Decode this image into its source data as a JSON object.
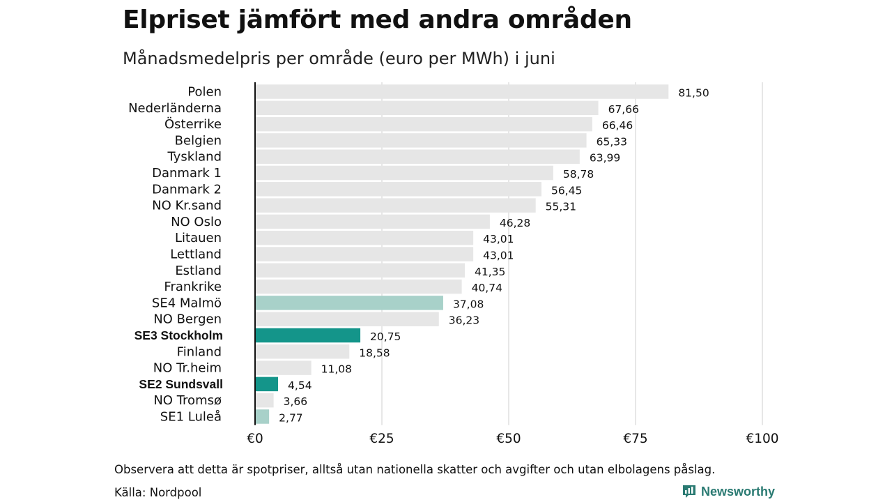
{
  "header": {
    "title": "Elpriset jämfört med andra områden",
    "subtitle": "Månadsmedelpris per område (euro per MWh) i juni"
  },
  "footer": {
    "note": "Observera att detta är spotpriser, alltså utan nationella skatter och avgifter och utan elbolagens påslag.",
    "source": "Källa: Nordpool",
    "brand": "Newsworthy"
  },
  "colors": {
    "default_bar": "#e6e6e6",
    "se_light": "#a8d1c9",
    "se_dark": "#14958a",
    "axis": "#111111",
    "grid": "#cfcfcf",
    "brand": "#2a7a72"
  },
  "chart_data": {
    "type": "bar",
    "orientation": "horizontal",
    "title": "Elpriset jämfört med andra områden",
    "subtitle": "Månadsmedelpris per område (euro per MWh) i juni",
    "xlim": [
      0,
      100
    ],
    "xticks": [
      0,
      25,
      50,
      75,
      100
    ],
    "xtick_labels": [
      "€0",
      "€25",
      "€50",
      "€75",
      "€100"
    ],
    "grid": "vertical",
    "categories": [
      "Polen",
      "Nederländerna",
      "Österrike",
      "Belgien",
      "Tyskland",
      "Danmark  1",
      "Danmark  2",
      "NO Kr.sand",
      "NO Oslo",
      "Litauen",
      "Lettland",
      "Estland",
      "Frankrike",
      "SE4  Malmö",
      "NO Bergen",
      "SE3 Stockholm",
      "Finland",
      "NO Tr.heim",
      "SE2 Sundsvall",
      "NO Tromsø",
      "SE1  Luleå"
    ],
    "values": [
      81.5,
      67.66,
      66.46,
      65.33,
      63.99,
      58.78,
      56.45,
      55.31,
      46.28,
      43.01,
      43.01,
      41.35,
      40.74,
      37.08,
      36.23,
      20.75,
      18.58,
      11.08,
      4.54,
      3.66,
      2.77
    ],
    "value_labels": [
      "81,50",
      "67,66",
      "66,46",
      "65,33",
      "63,99",
      "58,78",
      "56,45",
      "55,31",
      "46,28",
      "43,01",
      "43,01",
      "41,35",
      "40,74",
      "37,08",
      "36,23",
      "20,75",
      "18,58",
      "11,08",
      "4,54",
      "3,66",
      "2,77"
    ],
    "highlight": [
      "none",
      "none",
      "none",
      "none",
      "none",
      "none",
      "none",
      "none",
      "none",
      "none",
      "none",
      "none",
      "none",
      "light",
      "none",
      "strong",
      "none",
      "none",
      "strong",
      "none",
      "light"
    ],
    "bold_labels": [
      "SE3 Stockholm",
      "SE2 Sundsvall"
    ]
  }
}
